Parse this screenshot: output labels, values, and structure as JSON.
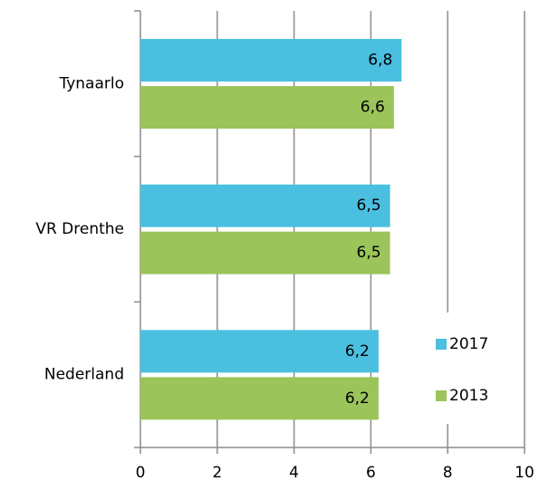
{
  "chart_data": {
    "type": "bar",
    "orientation": "horizontal",
    "categories": [
      "Tynaarlo",
      "VR Drenthe",
      "Nederland"
    ],
    "series": [
      {
        "name": "2017",
        "color": "#4bbfe0",
        "values": [
          6.8,
          6.5,
          6.2
        ],
        "value_labels": [
          "6,8",
          "6,5",
          "6,2"
        ]
      },
      {
        "name": "2013",
        "color": "#9bc45a",
        "values": [
          6.6,
          6.5,
          6.2
        ],
        "value_labels": [
          "6,6",
          "6,5",
          "6,2"
        ]
      }
    ],
    "xlim": [
      0,
      10
    ],
    "xticks": [
      0,
      2,
      4,
      6,
      8,
      10
    ],
    "grid": true,
    "legend": "lower right"
  }
}
